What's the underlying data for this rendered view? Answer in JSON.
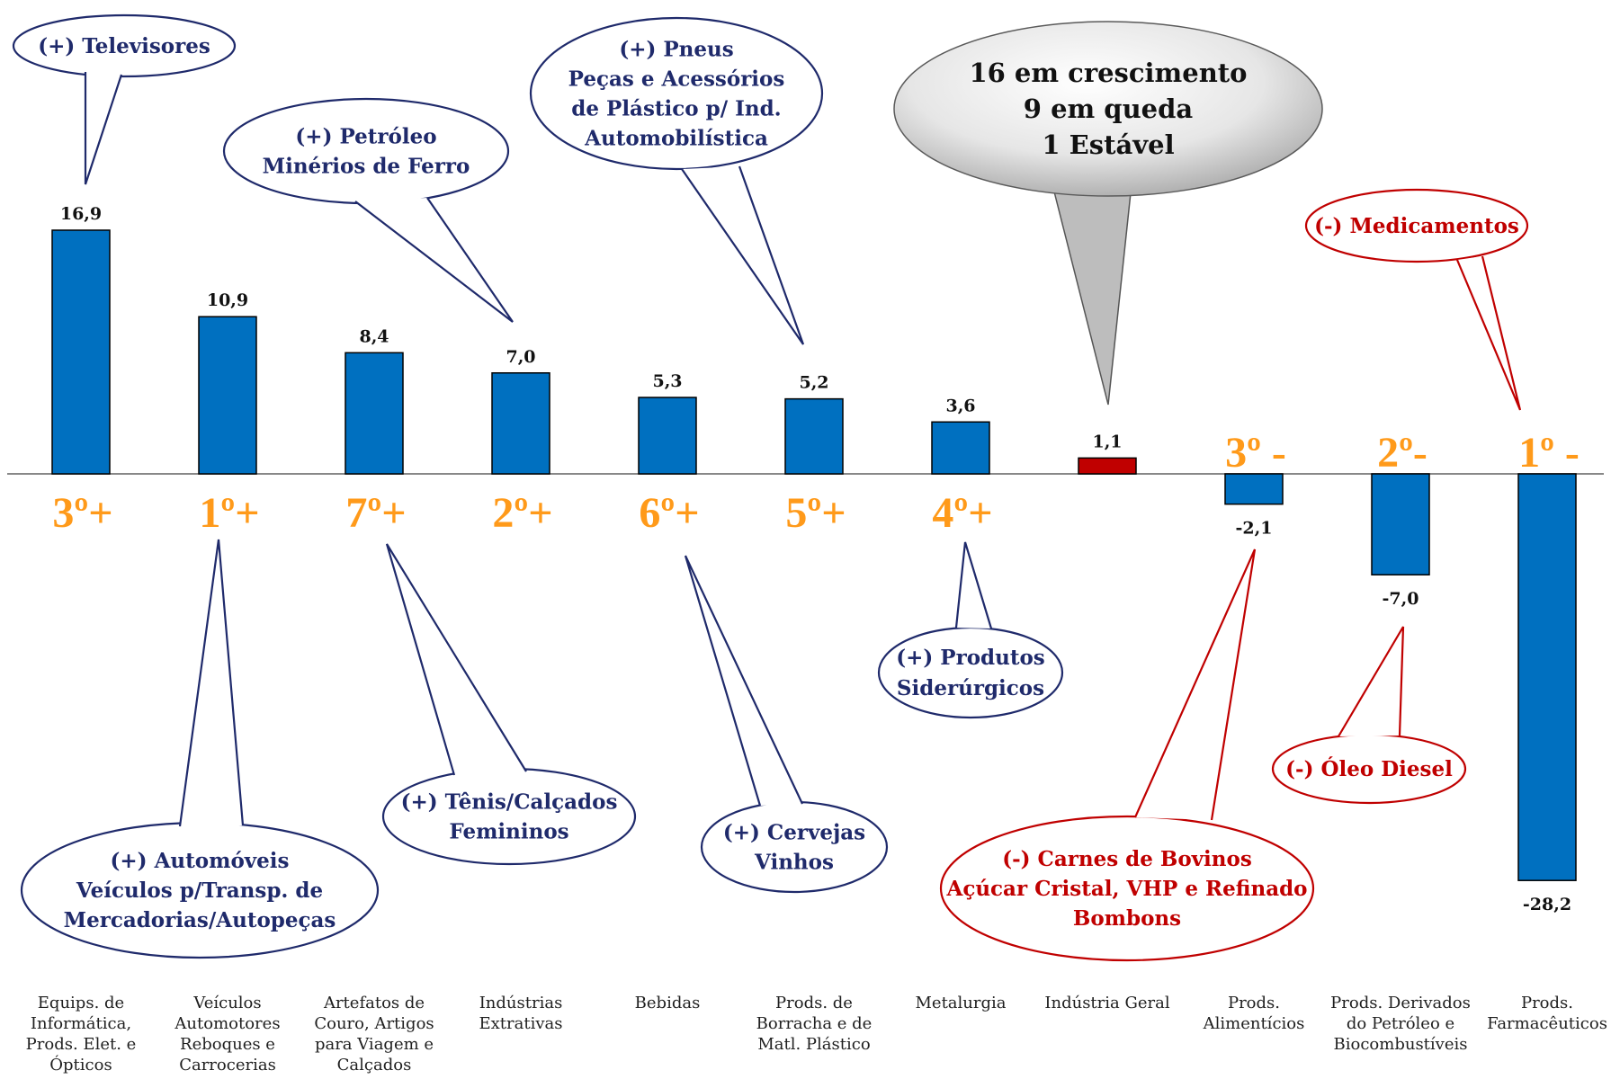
{
  "chart_data": {
    "type": "bar",
    "categories": [
      [
        "Equips. de",
        "Informática,",
        "Prods. Elet. e",
        "Ópticos"
      ],
      [
        "Veículos",
        "Automotores",
        "Reboques e",
        "Carrocerias"
      ],
      [
        "Artefatos de",
        "Couro, Artigos",
        "para Viagem e",
        "Calçados"
      ],
      [
        "Indústrias",
        "Extrativas"
      ],
      [
        "Bebidas"
      ],
      [
        "Prods. de",
        "Borracha e de",
        "Matl. Plástico"
      ],
      [
        "Metalurgia"
      ],
      [
        "Indústria Geral"
      ],
      [
        "Prods.",
        "Alimentícios"
      ],
      [
        "Prods. Derivados",
        "do Petróleo e",
        "Biocombustíveis"
      ],
      [
        "Prods.",
        "Farmacêuticos"
      ]
    ],
    "values": [
      16.9,
      10.9,
      8.4,
      7.0,
      5.3,
      5.2,
      3.6,
      1.1,
      -2.1,
      -7.0,
      -28.2
    ],
    "value_labels": [
      "16,9",
      "10,9",
      "8,4",
      "7,0",
      "5,3",
      "5,2",
      "3,6",
      "1,1",
      "-2,1",
      "-7,0",
      "-28,2"
    ],
    "ranks": [
      "3º+",
      "1º+",
      "7º+",
      "2º+",
      "6º+",
      "5º+",
      "4º+",
      "",
      "3º -",
      "2º-",
      "1º -"
    ],
    "highlight_index": 7,
    "ylim": [
      -28.2,
      16.9
    ],
    "colors": {
      "bar": "#0070c0",
      "highlight": "#c00000",
      "rank": "#ff9a1a",
      "positive_note": "#1f2a6b",
      "negative_note": "#c00000"
    },
    "annotations": [
      {
        "lines": [
          "(+) Televisores"
        ],
        "tone": "positive"
      },
      {
        "lines": [
          "(+) Automóveis",
          "Veículos p/Transp. de",
          "Mercadorias/Autopeças"
        ],
        "tone": "positive"
      },
      {
        "lines": [
          "(+) Tênis/Calçados",
          "Femininos"
        ],
        "tone": "positive"
      },
      {
        "lines": [
          "(+) Petróleo",
          "Minérios de Ferro"
        ],
        "tone": "positive"
      },
      {
        "lines": [
          "(+) Cervejas",
          "Vinhos"
        ],
        "tone": "positive"
      },
      {
        "lines": [
          "(+) Pneus",
          "Peças e Acessórios",
          "de Plástico p/ Ind.",
          "Automobilística"
        ],
        "tone": "positive"
      },
      {
        "lines": [
          "(+) Produtos",
          "Siderúrgicos"
        ],
        "tone": "positive"
      },
      {
        "lines": [
          "(-) Carnes de Bovinos",
          "Açúcar Cristal, VHP e Refinado",
          "Bombons"
        ],
        "tone": "negative"
      },
      {
        "lines": [
          "(-) Óleo Diesel"
        ],
        "tone": "negative"
      },
      {
        "lines": [
          "(-) Medicamentos"
        ],
        "tone": "negative"
      }
    ],
    "summary": [
      "16 em crescimento",
      "9 em queda",
      "1 Estável"
    ]
  }
}
